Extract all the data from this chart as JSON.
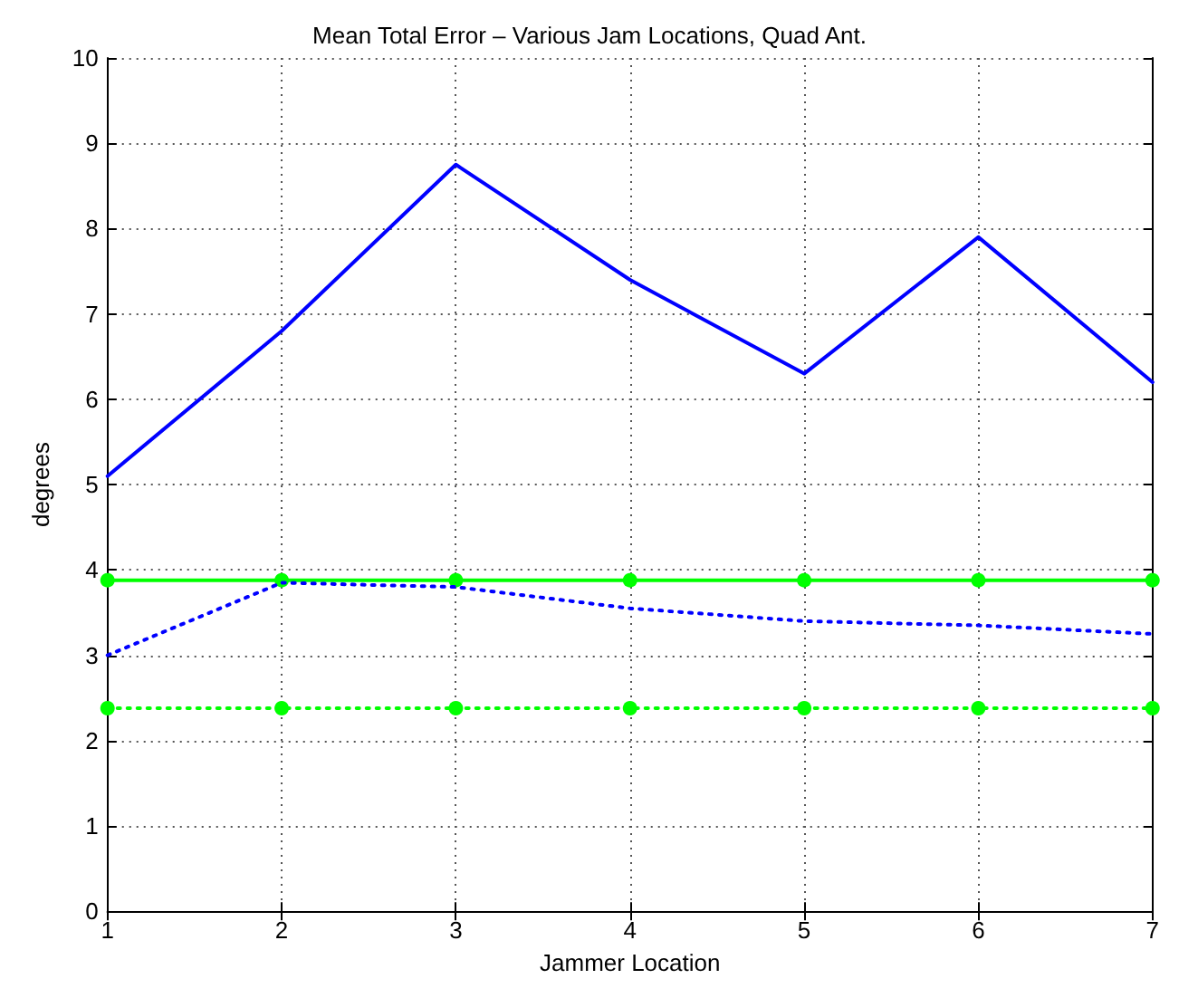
{
  "chart_data": {
    "type": "line",
    "title": "Mean Total Error – Various Jam Locations, Quad Ant.",
    "xlabel": "Jammer Location",
    "ylabel": "degrees",
    "x": [
      1,
      2,
      3,
      4,
      5,
      6,
      7
    ],
    "series": [
      {
        "color": "#0000ff",
        "values": [
          5.1,
          6.8,
          8.75,
          7.4,
          6.3,
          7.9,
          6.2
        ],
        "line_style": "solid",
        "marker": "none"
      },
      {
        "color": "#00ff00",
        "values": [
          3.88,
          3.88,
          3.88,
          3.88,
          3.88,
          3.88,
          3.88
        ],
        "line_style": "solid",
        "marker": "circle"
      },
      {
        "color": "#0000ff",
        "values": [
          3.0,
          3.85,
          3.8,
          3.55,
          3.4,
          3.35,
          3.25
        ],
        "line_style": "dotted",
        "marker": "none"
      },
      {
        "color": "#00ff00",
        "values": [
          2.38,
          2.38,
          2.38,
          2.38,
          2.38,
          2.38,
          2.38
        ],
        "line_style": "dotted",
        "marker": "circle"
      }
    ],
    "xlim": [
      1,
      7
    ],
    "xticks": [
      1,
      2,
      3,
      4,
      5,
      6,
      7
    ],
    "ylim": [
      0,
      10
    ],
    "yticks": [
      0,
      1,
      2,
      3,
      4,
      5,
      6,
      7,
      8,
      9,
      10
    ],
    "grid": true
  }
}
